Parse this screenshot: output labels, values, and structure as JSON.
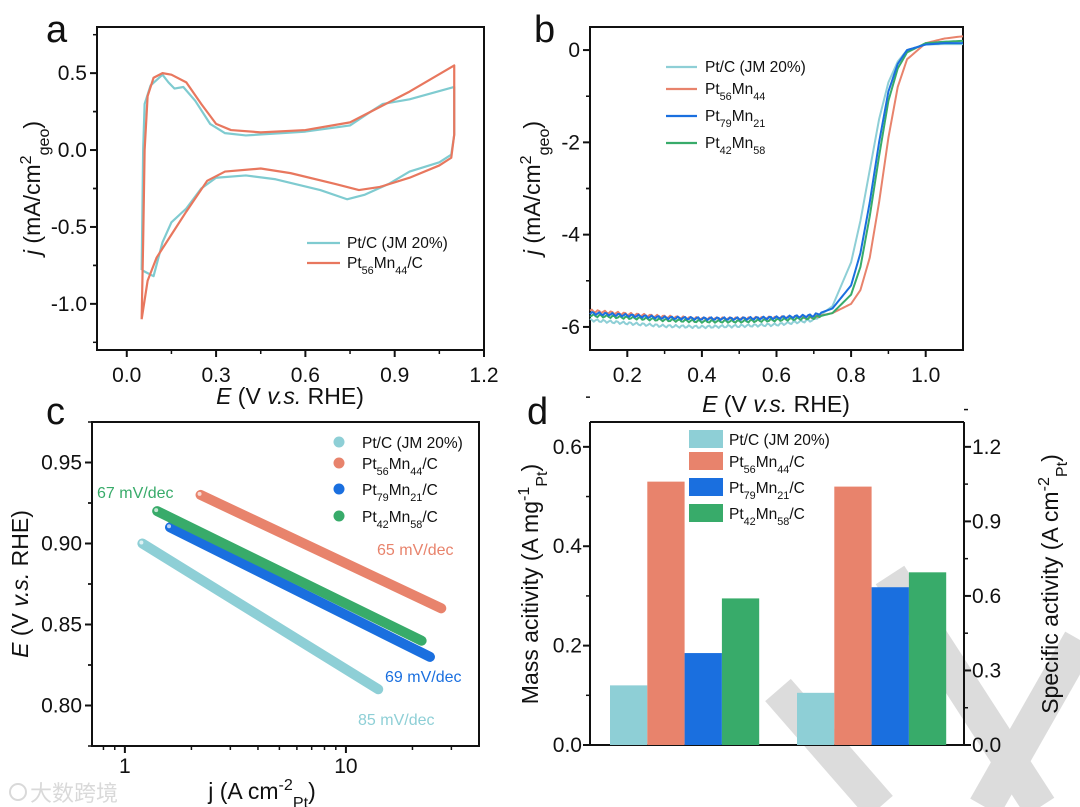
{
  "colors": {
    "ptc": "#8ecfd6",
    "pt56": "#e8836c",
    "pt79": "#1a6fdf",
    "pt42": "#38ab6a",
    "cv_ptc": "#7fcbd0",
    "cv_pt56": "#e8775e",
    "watermark": "#dcdcdc"
  },
  "watermark": {
    "text": "大数跨境"
  },
  "chart_data": [
    {
      "panel": "a",
      "type": "line",
      "xlabel": [
        {
          "t": "E",
          "i": true
        },
        {
          "t": " (V "
        },
        {
          "t": "v.s.",
          "i": true
        },
        {
          "t": " RHE)"
        }
      ],
      "ylabel": [
        {
          "t": "j",
          "i": true
        },
        {
          "t": " (mA/cm"
        },
        {
          "t": "2",
          "sup": true
        },
        {
          "t": "geo",
          "sub": true
        },
        {
          "t": ")"
        }
      ],
      "xlim": [
        -0.1,
        1.2
      ],
      "ylim": [
        -1.3,
        0.8
      ],
      "xticks": [
        0.0,
        0.3,
        0.6,
        0.9,
        1.2
      ],
      "xtick_labels": [
        "0.0",
        "0.3",
        "0.6",
        "0.9",
        "1.2"
      ],
      "yticks": [
        -1.0,
        -0.5,
        0.0,
        0.5
      ],
      "ytick_labels": [
        "-1.0",
        "-0.5",
        "0.0",
        "0.5"
      ],
      "legend": "bottom-right",
      "series": [
        {
          "key": "cv_ptc",
          "label": [
            {
              "t": "Pt/C (JM 20%)"
            }
          ],
          "points": [
            [
              0.05,
              -0.78
            ],
            [
              0.055,
              0
            ],
            [
              0.06,
              0.3
            ],
            [
              0.08,
              0.42
            ],
            [
              0.12,
              0.49
            ],
            [
              0.14,
              0.44
            ],
            [
              0.16,
              0.4
            ],
            [
              0.19,
              0.41
            ],
            [
              0.23,
              0.32
            ],
            [
              0.28,
              0.17
            ],
            [
              0.33,
              0.11
            ],
            [
              0.4,
              0.095
            ],
            [
              0.6,
              0.12
            ],
            [
              0.75,
              0.16
            ],
            [
              0.82,
              0.25
            ],
            [
              0.86,
              0.3
            ],
            [
              0.95,
              0.33
            ],
            [
              1.1,
              0.41
            ],
            [
              1.1,
              0.1
            ],
            [
              1.09,
              -0.03
            ],
            [
              1.05,
              -0.08
            ],
            [
              0.95,
              -0.14
            ],
            [
              0.88,
              -0.22
            ],
            [
              0.8,
              -0.29
            ],
            [
              0.74,
              -0.32
            ],
            [
              0.65,
              -0.26
            ],
            [
              0.5,
              -0.19
            ],
            [
              0.4,
              -0.165
            ],
            [
              0.3,
              -0.18
            ],
            [
              0.25,
              -0.25
            ],
            [
              0.2,
              -0.38
            ],
            [
              0.15,
              -0.47
            ],
            [
              0.12,
              -0.6
            ],
            [
              0.09,
              -0.82
            ],
            [
              0.07,
              -0.8
            ],
            [
              0.05,
              -0.78
            ]
          ]
        },
        {
          "key": "cv_pt56",
          "label": [
            {
              "t": "Pt"
            },
            {
              "t": "56",
              "sub": true
            },
            {
              "t": "Mn"
            },
            {
              "t": "44",
              "sub": true
            },
            {
              "t": "/C"
            }
          ],
          "points": [
            [
              0.05,
              -1.1
            ],
            [
              0.055,
              -0.6
            ],
            [
              0.06,
              0.0
            ],
            [
              0.07,
              0.35
            ],
            [
              0.09,
              0.47
            ],
            [
              0.12,
              0.5
            ],
            [
              0.15,
              0.49
            ],
            [
              0.2,
              0.44
            ],
            [
              0.25,
              0.3
            ],
            [
              0.3,
              0.17
            ],
            [
              0.35,
              0.13
            ],
            [
              0.45,
              0.115
            ],
            [
              0.6,
              0.13
            ],
            [
              0.75,
              0.18
            ],
            [
              0.85,
              0.28
            ],
            [
              0.95,
              0.38
            ],
            [
              1.1,
              0.55
            ],
            [
              1.1,
              0.1
            ],
            [
              1.09,
              -0.05
            ],
            [
              1.05,
              -0.1
            ],
            [
              0.95,
              -0.18
            ],
            [
              0.85,
              -0.24
            ],
            [
              0.78,
              -0.26
            ],
            [
              0.7,
              -0.22
            ],
            [
              0.55,
              -0.15
            ],
            [
              0.45,
              -0.12
            ],
            [
              0.33,
              -0.14
            ],
            [
              0.27,
              -0.2
            ],
            [
              0.2,
              -0.4
            ],
            [
              0.15,
              -0.55
            ],
            [
              0.1,
              -0.7
            ],
            [
              0.07,
              -0.85
            ],
            [
              0.05,
              -1.1
            ]
          ]
        }
      ]
    },
    {
      "panel": "b",
      "type": "line",
      "xlabel": [
        {
          "t": "E",
          "i": true
        },
        {
          "t": " (V "
        },
        {
          "t": "v.s.",
          "i": true
        },
        {
          "t": " RHE)"
        }
      ],
      "ylabel": [
        {
          "t": "j",
          "i": true
        },
        {
          "t": " (mA/cm"
        },
        {
          "t": "2",
          "sup": true
        },
        {
          "t": "geo",
          "sub": true
        },
        {
          "t": ")"
        }
      ],
      "xlim": [
        0.1,
        1.1
      ],
      "ylim": [
        -6.5,
        0.5
      ],
      "xticks": [
        0.2,
        0.4,
        0.6,
        0.8,
        1.0
      ],
      "xtick_labels": [
        "0.2",
        "0.4",
        "0.6",
        "0.8",
        "1.0"
      ],
      "yticks": [
        -6,
        -4,
        -2,
        0
      ],
      "ytick_labels": [
        "-6",
        "-4",
        "-2",
        "0"
      ],
      "legend": "top-left",
      "x": [
        0.1,
        0.2,
        0.3,
        0.4,
        0.5,
        0.6,
        0.7,
        0.75,
        0.8,
        0.825,
        0.85,
        0.875,
        0.9,
        0.925,
        0.95,
        1.0,
        1.05,
        1.1
      ],
      "series": [
        {
          "key": "ptc",
          "label": [
            {
              "t": "Pt/C (JM 20%)"
            }
          ],
          "values": [
            -5.85,
            -5.92,
            -5.98,
            -6.0,
            -5.98,
            -5.95,
            -5.85,
            -5.55,
            -4.6,
            -3.7,
            -2.6,
            -1.5,
            -0.7,
            -0.25,
            0.0,
            0.12,
            0.13,
            0.13
          ]
        },
        {
          "key": "pt56",
          "label": [
            {
              "t": "Pt"
            },
            {
              "t": "56",
              "sub": true
            },
            {
              "t": "Mn"
            },
            {
              "t": "44",
              "sub": true
            }
          ],
          "values": [
            -5.65,
            -5.72,
            -5.78,
            -5.82,
            -5.82,
            -5.8,
            -5.78,
            -5.7,
            -5.5,
            -5.2,
            -4.5,
            -3.3,
            -1.9,
            -0.8,
            -0.2,
            0.15,
            0.25,
            0.3
          ]
        },
        {
          "key": "pt79",
          "label": [
            {
              "t": "Pt"
            },
            {
              "t": "79",
              "sub": true
            },
            {
              "t": "Mn"
            },
            {
              "t": "21",
              "sub": true
            }
          ],
          "values": [
            -5.7,
            -5.75,
            -5.8,
            -5.82,
            -5.82,
            -5.8,
            -5.75,
            -5.6,
            -5.1,
            -4.4,
            -3.3,
            -2.0,
            -0.9,
            -0.3,
            0.0,
            0.12,
            0.15,
            0.15
          ]
        },
        {
          "key": "pt42",
          "label": [
            {
              "t": "Pt"
            },
            {
              "t": "42",
              "sub": true
            },
            {
              "t": "Mn"
            },
            {
              "t": "58",
              "sub": true
            }
          ],
          "values": [
            -5.75,
            -5.8,
            -5.85,
            -5.88,
            -5.88,
            -5.85,
            -5.8,
            -5.7,
            -5.3,
            -4.7,
            -3.6,
            -2.3,
            -1.1,
            -0.4,
            -0.05,
            0.15,
            0.18,
            0.2
          ]
        }
      ]
    },
    {
      "panel": "c",
      "type": "scatter",
      "xscale": "log",
      "xlabel": [
        {
          "t": "j (A cm"
        },
        {
          "t": "-2",
          "sup": true
        },
        {
          "t": "Pt",
          "sub": true
        },
        {
          "t": ")"
        }
      ],
      "ylabel": [
        {
          "t": "E",
          "i": true
        },
        {
          "t": " (V "
        },
        {
          "t": "v.s.",
          "i": true
        },
        {
          "t": " RHE)"
        }
      ],
      "xlim": [
        0.71,
        40
      ],
      "ylim": [
        0.775,
        0.975
      ],
      "xticks": [
        1,
        10
      ],
      "xtick_labels": [
        "1",
        "10"
      ],
      "yticks": [
        0.8,
        0.85,
        0.9,
        0.95
      ],
      "ytick_labels": [
        "0.80",
        "0.85",
        "0.90",
        "0.95"
      ],
      "legend": "top-right",
      "series": [
        {
          "key": "ptc",
          "label": [
            {
              "t": "Pt/C (JM 20%)"
            }
          ],
          "points": [
            [
              1.2,
              0.9
            ],
            [
              14,
              0.81
            ]
          ],
          "annotation": "85 mV/dec"
        },
        {
          "key": "pt56",
          "label": [
            {
              "t": "Pt"
            },
            {
              "t": "56",
              "sub": true
            },
            {
              "t": "Mn"
            },
            {
              "t": "44",
              "sub": true
            },
            {
              "t": "/C"
            }
          ],
          "points": [
            [
              2.2,
              0.93
            ],
            [
              27,
              0.86
            ]
          ],
          "annotation": "65 mV/dec"
        },
        {
          "key": "pt79",
          "label": [
            {
              "t": "Pt"
            },
            {
              "t": "79",
              "sub": true
            },
            {
              "t": "Mn"
            },
            {
              "t": "21",
              "sub": true
            },
            {
              "t": "/C"
            }
          ],
          "points": [
            [
              1.6,
              0.91
            ],
            [
              24,
              0.83
            ]
          ],
          "annotation": "69 mV/dec"
        },
        {
          "key": "pt42",
          "label": [
            {
              "t": "Pt"
            },
            {
              "t": "42",
              "sub": true
            },
            {
              "t": "Mn"
            },
            {
              "t": "58",
              "sub": true
            },
            {
              "t": "/C"
            }
          ],
          "points": [
            [
              1.4,
              0.92
            ],
            [
              22,
              0.84
            ]
          ],
          "annotation": "67 mV/dec"
        }
      ]
    },
    {
      "panel": "d",
      "type": "bar",
      "categories": [
        "Mass activity",
        "Specific activity"
      ],
      "ylabel": [
        {
          "t": "Mass acitivity (A mg"
        },
        {
          "t": "-1",
          "sup": true
        },
        {
          "t": "Pt",
          "sub": true
        },
        {
          "t": ")"
        }
      ],
      "y2label": [
        {
          "t": "Specific activity (A cm"
        },
        {
          "t": "-2",
          "sup": true
        },
        {
          "t": "Pt",
          "sub": true
        },
        {
          "t": ")"
        }
      ],
      "ylim": [
        0,
        0.65
      ],
      "y2lim": [
        0,
        1.3
      ],
      "yticks": [
        0.0,
        0.2,
        0.4,
        0.6
      ],
      "ytick_labels": [
        "0.0",
        "0.2",
        "0.4",
        "0.6"
      ],
      "y2ticks": [
        0.0,
        0.3,
        0.6,
        0.9,
        1.2
      ],
      "y2tick_labels": [
        "0.0",
        "0.3",
        "0.6",
        "0.9",
        "1.2"
      ],
      "legend": "top-center",
      "series": [
        {
          "key": "ptc",
          "label": [
            {
              "t": "Pt/C (JM 20%)"
            }
          ],
          "mass": 0.12,
          "specific": 0.21
        },
        {
          "key": "pt56",
          "label": [
            {
              "t": "Pt"
            },
            {
              "t": "56",
              "sub": true
            },
            {
              "t": "Mn"
            },
            {
              "t": "44",
              "sub": true
            },
            {
              "t": "/C"
            }
          ],
          "mass": 0.53,
          "specific": 1.04
        },
        {
          "key": "pt79",
          "label": [
            {
              "t": "Pt"
            },
            {
              "t": "79",
              "sub": true
            },
            {
              "t": "Mn"
            },
            {
              "t": "21",
              "sub": true
            },
            {
              "t": "/C"
            }
          ],
          "mass": 0.185,
          "specific": 0.635
        },
        {
          "key": "pt42",
          "label": [
            {
              "t": "Pt"
            },
            {
              "t": "42",
              "sub": true
            },
            {
              "t": "Mn"
            },
            {
              "t": "58",
              "sub": true
            },
            {
              "t": "/C"
            }
          ],
          "mass": 0.295,
          "specific": 0.695
        }
      ]
    }
  ]
}
